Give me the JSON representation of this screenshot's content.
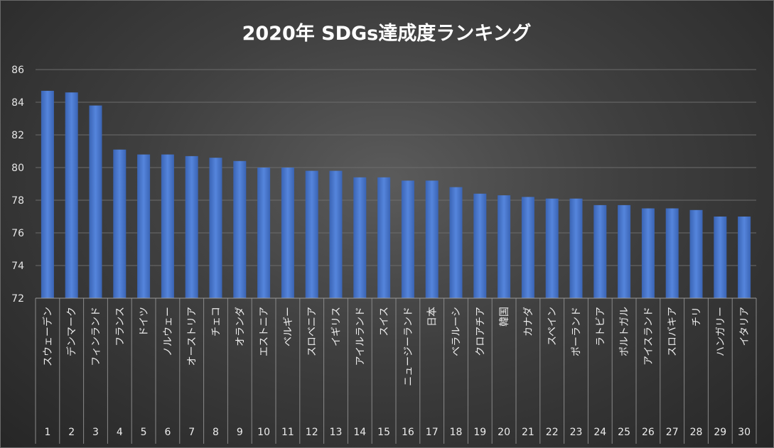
{
  "chart_data": {
    "type": "bar",
    "title": "2020年 SDGs達成度ランキング",
    "xlabel": "",
    "ylabel": "",
    "ylim": [
      72,
      86
    ],
    "yticks": [
      72,
      74,
      76,
      78,
      80,
      82,
      84,
      86
    ],
    "grid": true,
    "legend": "none",
    "bar_color": "#4472c4",
    "categories": [
      "スウェーデン",
      "デンマーク",
      "フィンランド",
      "フランス",
      "ドイツ",
      "ノルウェー",
      "オーストリア",
      "チェコ",
      "オランダ",
      "エストニア",
      "ベルギー",
      "スロベニア",
      "イギリス",
      "アイルランド",
      "スイス",
      "ニュージーランド",
      "日本",
      "ベラルーシ",
      "クロアチア",
      "韓国",
      "カナダ",
      "スペイン",
      "ポーランド",
      "ラトビア",
      "ポルトガル",
      "アイスランド",
      "スロバキア",
      "チリ",
      "ハンガリー",
      "イタリア"
    ],
    "ranks": [
      "1",
      "2",
      "3",
      "4",
      "5",
      "6",
      "7",
      "8",
      "9",
      "10",
      "11",
      "12",
      "13",
      "14",
      "15",
      "16",
      "17",
      "18",
      "19",
      "20",
      "21",
      "22",
      "23",
      "24",
      "25",
      "26",
      "27",
      "28",
      "29",
      "30"
    ],
    "values": [
      84.7,
      84.6,
      83.8,
      81.1,
      80.8,
      80.8,
      80.7,
      80.6,
      80.4,
      80.0,
      80.0,
      79.8,
      79.8,
      79.4,
      79.4,
      79.2,
      79.2,
      78.8,
      78.4,
      78.3,
      78.2,
      78.1,
      78.1,
      77.7,
      77.7,
      77.5,
      77.5,
      77.4,
      77.0,
      77.0
    ]
  }
}
